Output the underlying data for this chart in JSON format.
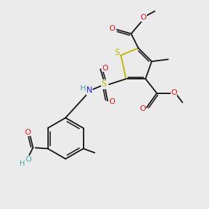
{
  "bg_color": "#ebebeb",
  "bond_color": "#1a1a1a",
  "S_color": "#b8b800",
  "N_color": "#2222ee",
  "O_color": "#ee1111",
  "H_color": "#44aaaa",
  "figsize": [
    3.0,
    3.0
  ],
  "dpi": 100,
  "xlim": [
    0,
    10
  ],
  "ylim": [
    0,
    10
  ]
}
